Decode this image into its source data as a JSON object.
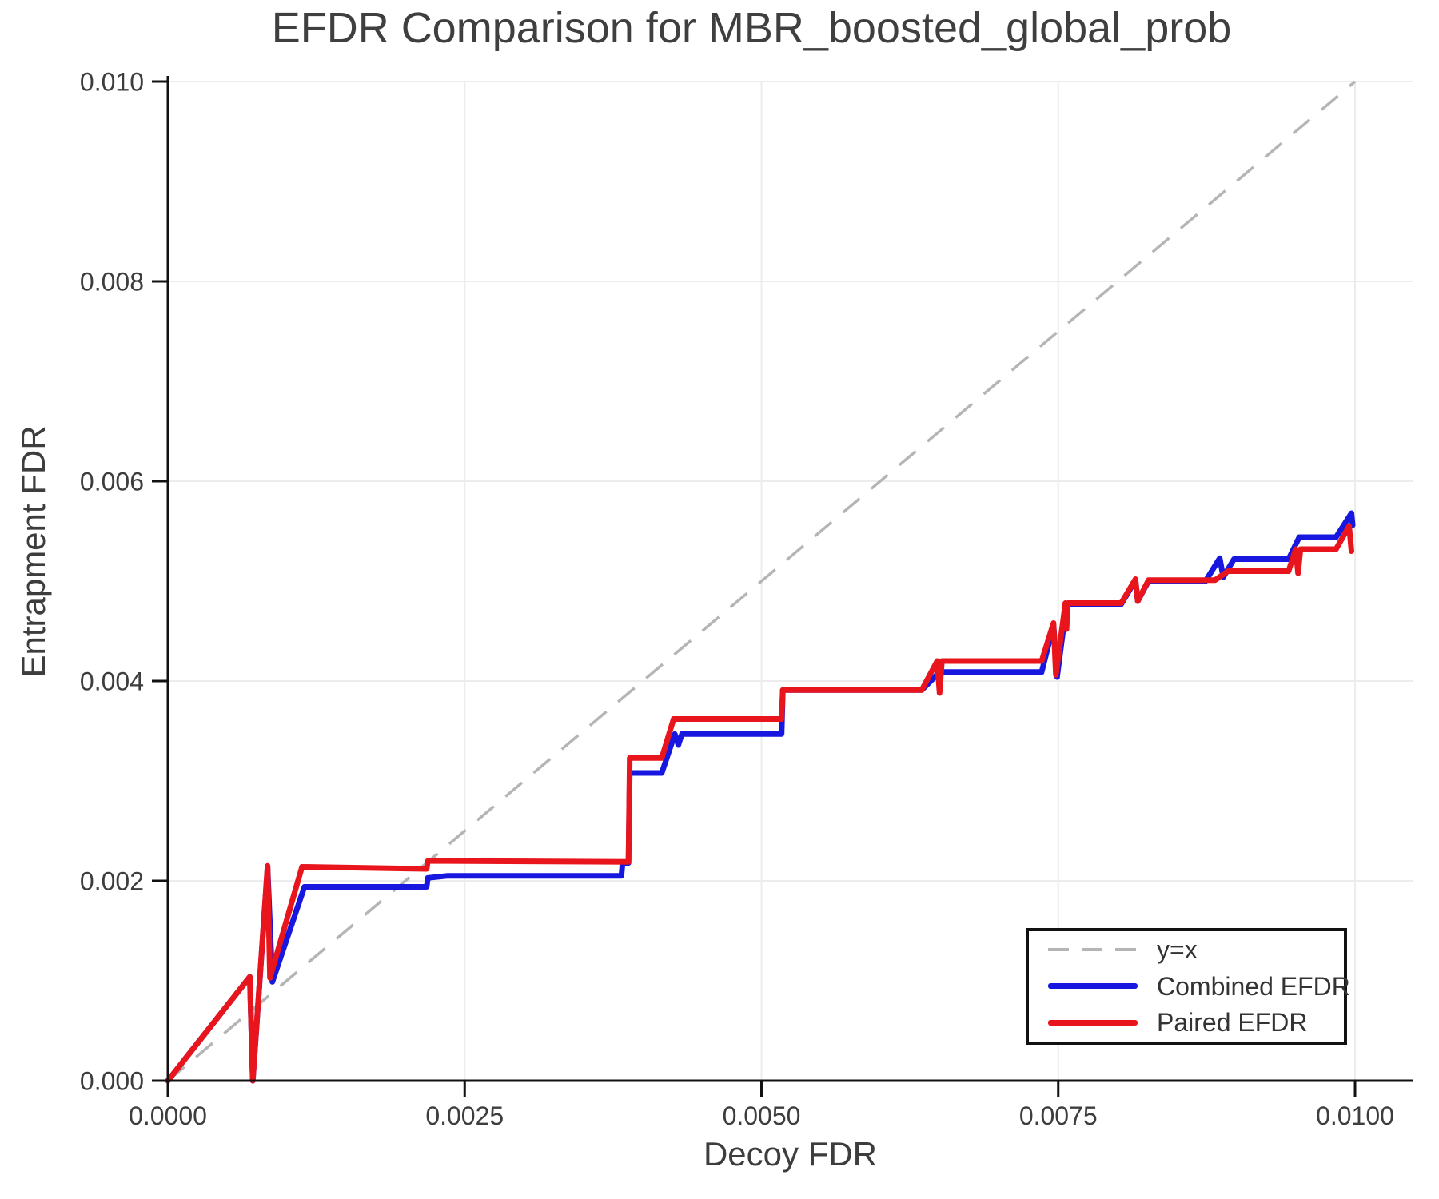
{
  "chart_data": {
    "type": "line",
    "title": "EFDR Comparison for MBR_boosted_global_prob",
    "xlabel": "Decoy FDR",
    "ylabel": "Entrapment FDR",
    "xlim": [
      0.0,
      0.01048
    ],
    "ylim": [
      0.0,
      0.01
    ],
    "grid": true,
    "legend_position": "lower right",
    "x_ticks": {
      "values": [
        0.0,
        0.0025,
        0.005,
        0.0075,
        0.01
      ],
      "labels": [
        "0.0000",
        "0.0025",
        "0.0050",
        "0.0075",
        "0.0100"
      ]
    },
    "y_ticks": {
      "values": [
        0.0,
        0.002,
        0.004,
        0.006,
        0.008,
        0.01
      ],
      "labels": [
        "0.000",
        "0.002",
        "0.004",
        "0.006",
        "0.008",
        "0.010"
      ]
    },
    "series": [
      {
        "name": "y=x",
        "style": "dashed",
        "color": "#b5b5b5",
        "width": 3.5,
        "points": [
          [
            0.0,
            0.0
          ],
          [
            0.01,
            0.01
          ]
        ]
      },
      {
        "name": "Combined EFDR",
        "style": "solid",
        "color": "#1717e0",
        "width": 7,
        "points": [
          [
            0.0,
            0.0
          ],
          [
            0.00069,
            0.00104
          ],
          [
            0.000715,
            0.0
          ],
          [
            0.00084,
            0.00213
          ],
          [
            0.00088,
            0.00099
          ],
          [
            0.00115,
            0.00194
          ],
          [
            0.00218,
            0.00194
          ],
          [
            0.00219,
            0.00203
          ],
          [
            0.00235,
            0.00205
          ],
          [
            0.00382,
            0.00205
          ],
          [
            0.00383,
            0.00218
          ],
          [
            0.00388,
            0.00218
          ],
          [
            0.00389,
            0.00308
          ],
          [
            0.00416,
            0.00308
          ],
          [
            0.00427,
            0.00347
          ],
          [
            0.0043,
            0.00336
          ],
          [
            0.00433,
            0.00347
          ],
          [
            0.00517,
            0.00347
          ],
          [
            0.00518,
            0.00391
          ],
          [
            0.00635,
            0.00391
          ],
          [
            0.0065,
            0.00409
          ],
          [
            0.00736,
            0.00409
          ],
          [
            0.00746,
            0.00456
          ],
          [
            0.00749,
            0.00404
          ],
          [
            0.00757,
            0.00477
          ],
          [
            0.00803,
            0.00477
          ],
          [
            0.00815,
            0.00501
          ],
          [
            0.00817,
            0.0048
          ],
          [
            0.00826,
            0.005
          ],
          [
            0.00874,
            0.005
          ],
          [
            0.00886,
            0.00523
          ],
          [
            0.00889,
            0.00504
          ],
          [
            0.00898,
            0.00522
          ],
          [
            0.00944,
            0.00522
          ],
          [
            0.00953,
            0.00544
          ],
          [
            0.00984,
            0.00544
          ],
          [
            0.00997,
            0.00568
          ],
          [
            0.00998,
            0.00556
          ]
        ]
      },
      {
        "name": "Paired EFDR",
        "style": "solid",
        "color": "#e9151d",
        "width": 7,
        "points": [
          [
            0.0,
            0.0
          ],
          [
            0.00069,
            0.00104
          ],
          [
            0.000715,
            0.0
          ],
          [
            0.00084,
            0.00215
          ],
          [
            0.00086,
            0.00103
          ],
          [
            0.00113,
            0.00214
          ],
          [
            0.00218,
            0.00212
          ],
          [
            0.00219,
            0.0022
          ],
          [
            0.00388,
            0.00219
          ],
          [
            0.00389,
            0.00323
          ],
          [
            0.00416,
            0.00323
          ],
          [
            0.00426,
            0.00362
          ],
          [
            0.00517,
            0.00362
          ],
          [
            0.00518,
            0.00391
          ],
          [
            0.00635,
            0.00391
          ],
          [
            0.00648,
            0.0042
          ],
          [
            0.0065,
            0.00388
          ],
          [
            0.00652,
            0.0042
          ],
          [
            0.00736,
            0.0042
          ],
          [
            0.00746,
            0.00458
          ],
          [
            0.00748,
            0.00406
          ],
          [
            0.00756,
            0.00478
          ],
          [
            0.00757,
            0.00452
          ],
          [
            0.00758,
            0.00478
          ],
          [
            0.00803,
            0.00478
          ],
          [
            0.00815,
            0.00502
          ],
          [
            0.00817,
            0.0048
          ],
          [
            0.00826,
            0.00501
          ],
          [
            0.00882,
            0.00501
          ],
          [
            0.00893,
            0.0051
          ],
          [
            0.00944,
            0.0051
          ],
          [
            0.0095,
            0.00532
          ],
          [
            0.00952,
            0.00508
          ],
          [
            0.00954,
            0.00532
          ],
          [
            0.00984,
            0.00532
          ],
          [
            0.00995,
            0.00555
          ],
          [
            0.00997,
            0.0053
          ]
        ]
      }
    ],
    "colors": {
      "grid": "#ececec",
      "spine": "#111111",
      "tick_text": "#3d3d3d",
      "title_text": "#3f3f3f",
      "legend_border": "#111111",
      "legend_background": "#ffffff"
    }
  }
}
